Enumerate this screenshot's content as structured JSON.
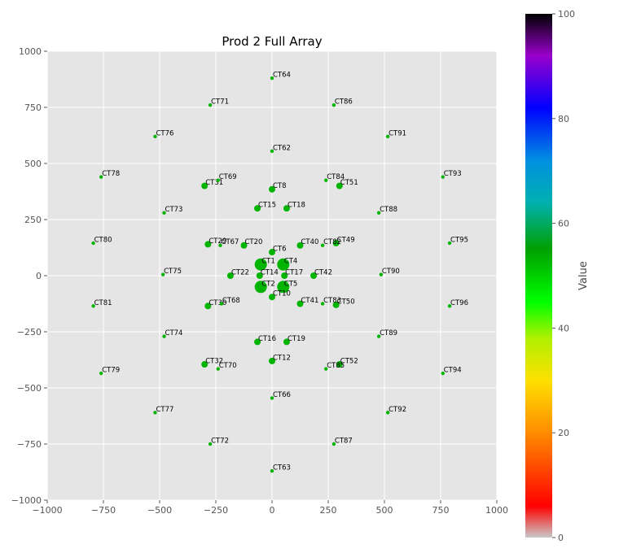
{
  "chart_data": {
    "type": "scatter",
    "title": "Prod 2 Full Array",
    "xlabel": "",
    "ylabel": "",
    "xlim": [
      -1000,
      1000
    ],
    "ylim": [
      -1000,
      1000
    ],
    "xticks": [
      -1000,
      -750,
      -500,
      -250,
      0,
      250,
      500,
      750,
      1000
    ],
    "yticks": [
      -1000,
      -750,
      -500,
      -250,
      0,
      250,
      500,
      750,
      1000
    ],
    "xtick_labels": [
      "−1000",
      "−750",
      "−500",
      "−250",
      "0",
      "250",
      "500",
      "750",
      "1000"
    ],
    "ytick_labels": [
      "−1000",
      "−750",
      "−500",
      "−250",
      "0",
      "250",
      "500",
      "750",
      "1000"
    ],
    "grid": true,
    "point_color": "#00b400",
    "points": [
      {
        "name": "CT1",
        "x": -50,
        "y": 50,
        "size": 3
      },
      {
        "name": "CT2",
        "x": -50,
        "y": -50,
        "size": 3
      },
      {
        "name": "CT4",
        "x": 50,
        "y": 50,
        "size": 3
      },
      {
        "name": "CT5",
        "x": 50,
        "y": -50,
        "size": 3
      },
      {
        "name": "CT6",
        "x": 0,
        "y": 105,
        "size": 1.5
      },
      {
        "name": "CT8",
        "x": 0,
        "y": 385,
        "size": 1.5
      },
      {
        "name": "CT10",
        "x": 0,
        "y": -95,
        "size": 1.5
      },
      {
        "name": "CT12",
        "x": 0,
        "y": -380,
        "size": 1.5
      },
      {
        "name": "CT14",
        "x": -55,
        "y": 0,
        "size": 1.5
      },
      {
        "name": "CT16",
        "x": -65,
        "y": -295,
        "size": 1.5
      },
      {
        "name": "CT17",
        "x": 55,
        "y": 0,
        "size": 1.5
      },
      {
        "name": "CT18",
        "x": 65,
        "y": 300,
        "size": 1.5
      },
      {
        "name": "CT15",
        "x": -65,
        "y": 300,
        "size": 1.5
      },
      {
        "name": "CT19",
        "x": 65,
        "y": -295,
        "size": 1.5
      },
      {
        "name": "CT20",
        "x": -125,
        "y": 135,
        "size": 1.5
      },
      {
        "name": "CT22",
        "x": -185,
        "y": 0,
        "size": 1.5
      },
      {
        "name": "CT29",
        "x": -285,
        "y": 140,
        "size": 1.5
      },
      {
        "name": "CT30",
        "x": -285,
        "y": -135,
        "size": 1.5
      },
      {
        "name": "CT31",
        "x": -300,
        "y": 400,
        "size": 1.5
      },
      {
        "name": "CT32",
        "x": -300,
        "y": -395,
        "size": 1.5
      },
      {
        "name": "CT40",
        "x": 125,
        "y": 135,
        "size": 1.5
      },
      {
        "name": "CT41",
        "x": 125,
        "y": -125,
        "size": 1.5
      },
      {
        "name": "CT42",
        "x": 185,
        "y": 0,
        "size": 1.5
      },
      {
        "name": "CT49",
        "x": 285,
        "y": 145,
        "size": 1.5
      },
      {
        "name": "CT50",
        "x": 285,
        "y": -130,
        "size": 1.5
      },
      {
        "name": "CT51",
        "x": 300,
        "y": 400,
        "size": 1.5
      },
      {
        "name": "CT52",
        "x": 300,
        "y": -395,
        "size": 1.5
      },
      {
        "name": "CT62",
        "x": 0,
        "y": 555,
        "size": 1
      },
      {
        "name": "CT63",
        "x": 0,
        "y": -870,
        "size": 1
      },
      {
        "name": "CT64",
        "x": 0,
        "y": 880,
        "size": 1
      },
      {
        "name": "CT66",
        "x": 0,
        "y": -545,
        "size": 1
      },
      {
        "name": "CT67",
        "x": -230,
        "y": 135,
        "size": 1
      },
      {
        "name": "CT68",
        "x": -225,
        "y": -125,
        "size": 1
      },
      {
        "name": "CT69",
        "x": -240,
        "y": 425,
        "size": 1
      },
      {
        "name": "CT70",
        "x": -240,
        "y": -415,
        "size": 1
      },
      {
        "name": "CT71",
        "x": -275,
        "y": 760,
        "size": 1
      },
      {
        "name": "CT72",
        "x": -275,
        "y": -750,
        "size": 1
      },
      {
        "name": "CT73",
        "x": -480,
        "y": 280,
        "size": 1
      },
      {
        "name": "CT74",
        "x": -480,
        "y": -270,
        "size": 1
      },
      {
        "name": "CT75",
        "x": -485,
        "y": 5,
        "size": 1
      },
      {
        "name": "CT76",
        "x": -520,
        "y": 620,
        "size": 1
      },
      {
        "name": "CT77",
        "x": -520,
        "y": -610,
        "size": 1
      },
      {
        "name": "CT78",
        "x": -760,
        "y": 440,
        "size": 1
      },
      {
        "name": "CT79",
        "x": -760,
        "y": -435,
        "size": 1
      },
      {
        "name": "CT80",
        "x": -795,
        "y": 145,
        "size": 1
      },
      {
        "name": "CT81",
        "x": -795,
        "y": -135,
        "size": 1
      },
      {
        "name": "CT82",
        "x": 225,
        "y": 135,
        "size": 1
      },
      {
        "name": "CT83",
        "x": 225,
        "y": -125,
        "size": 1
      },
      {
        "name": "CT84",
        "x": 240,
        "y": 425,
        "size": 1
      },
      {
        "name": "CT85",
        "x": 240,
        "y": -415,
        "size": 1
      },
      {
        "name": "CT86",
        "x": 275,
        "y": 760,
        "size": 1
      },
      {
        "name": "CT87",
        "x": 275,
        "y": -750,
        "size": 1
      },
      {
        "name": "CT88",
        "x": 475,
        "y": 280,
        "size": 1
      },
      {
        "name": "CT89",
        "x": 475,
        "y": -270,
        "size": 1
      },
      {
        "name": "CT90",
        "x": 485,
        "y": 5,
        "size": 1
      },
      {
        "name": "CT91",
        "x": 515,
        "y": 620,
        "size": 1
      },
      {
        "name": "CT92",
        "x": 515,
        "y": -610,
        "size": 1
      },
      {
        "name": "CT93",
        "x": 760,
        "y": 440,
        "size": 1
      },
      {
        "name": "CT94",
        "x": 760,
        "y": -435,
        "size": 1
      },
      {
        "name": "CT95",
        "x": 790,
        "y": 145,
        "size": 1
      },
      {
        "name": "CT96",
        "x": 790,
        "y": -135,
        "size": 1
      }
    ],
    "colorbar": {
      "label": "Value",
      "range": [
        0,
        100
      ],
      "ticks": [
        "0",
        "20",
        "40",
        "60",
        "80",
        "100"
      ],
      "tick_values": [
        0,
        20,
        40,
        60,
        80,
        100
      ],
      "stops": [
        {
          "v": 0,
          "c": "#c8c8c8"
        },
        {
          "v": 6,
          "c": "#ff0000"
        },
        {
          "v": 20,
          "c": "#ff8c00"
        },
        {
          "v": 30,
          "c": "#ffe000"
        },
        {
          "v": 38,
          "c": "#b0f000"
        },
        {
          "v": 45,
          "c": "#00ff00"
        },
        {
          "v": 55,
          "c": "#00a000"
        },
        {
          "v": 64,
          "c": "#00b0b0"
        },
        {
          "v": 72,
          "c": "#0090e0"
        },
        {
          "v": 82,
          "c": "#0000ff"
        },
        {
          "v": 92,
          "c": "#9900cc"
        },
        {
          "v": 100,
          "c": "#000000"
        }
      ]
    }
  }
}
